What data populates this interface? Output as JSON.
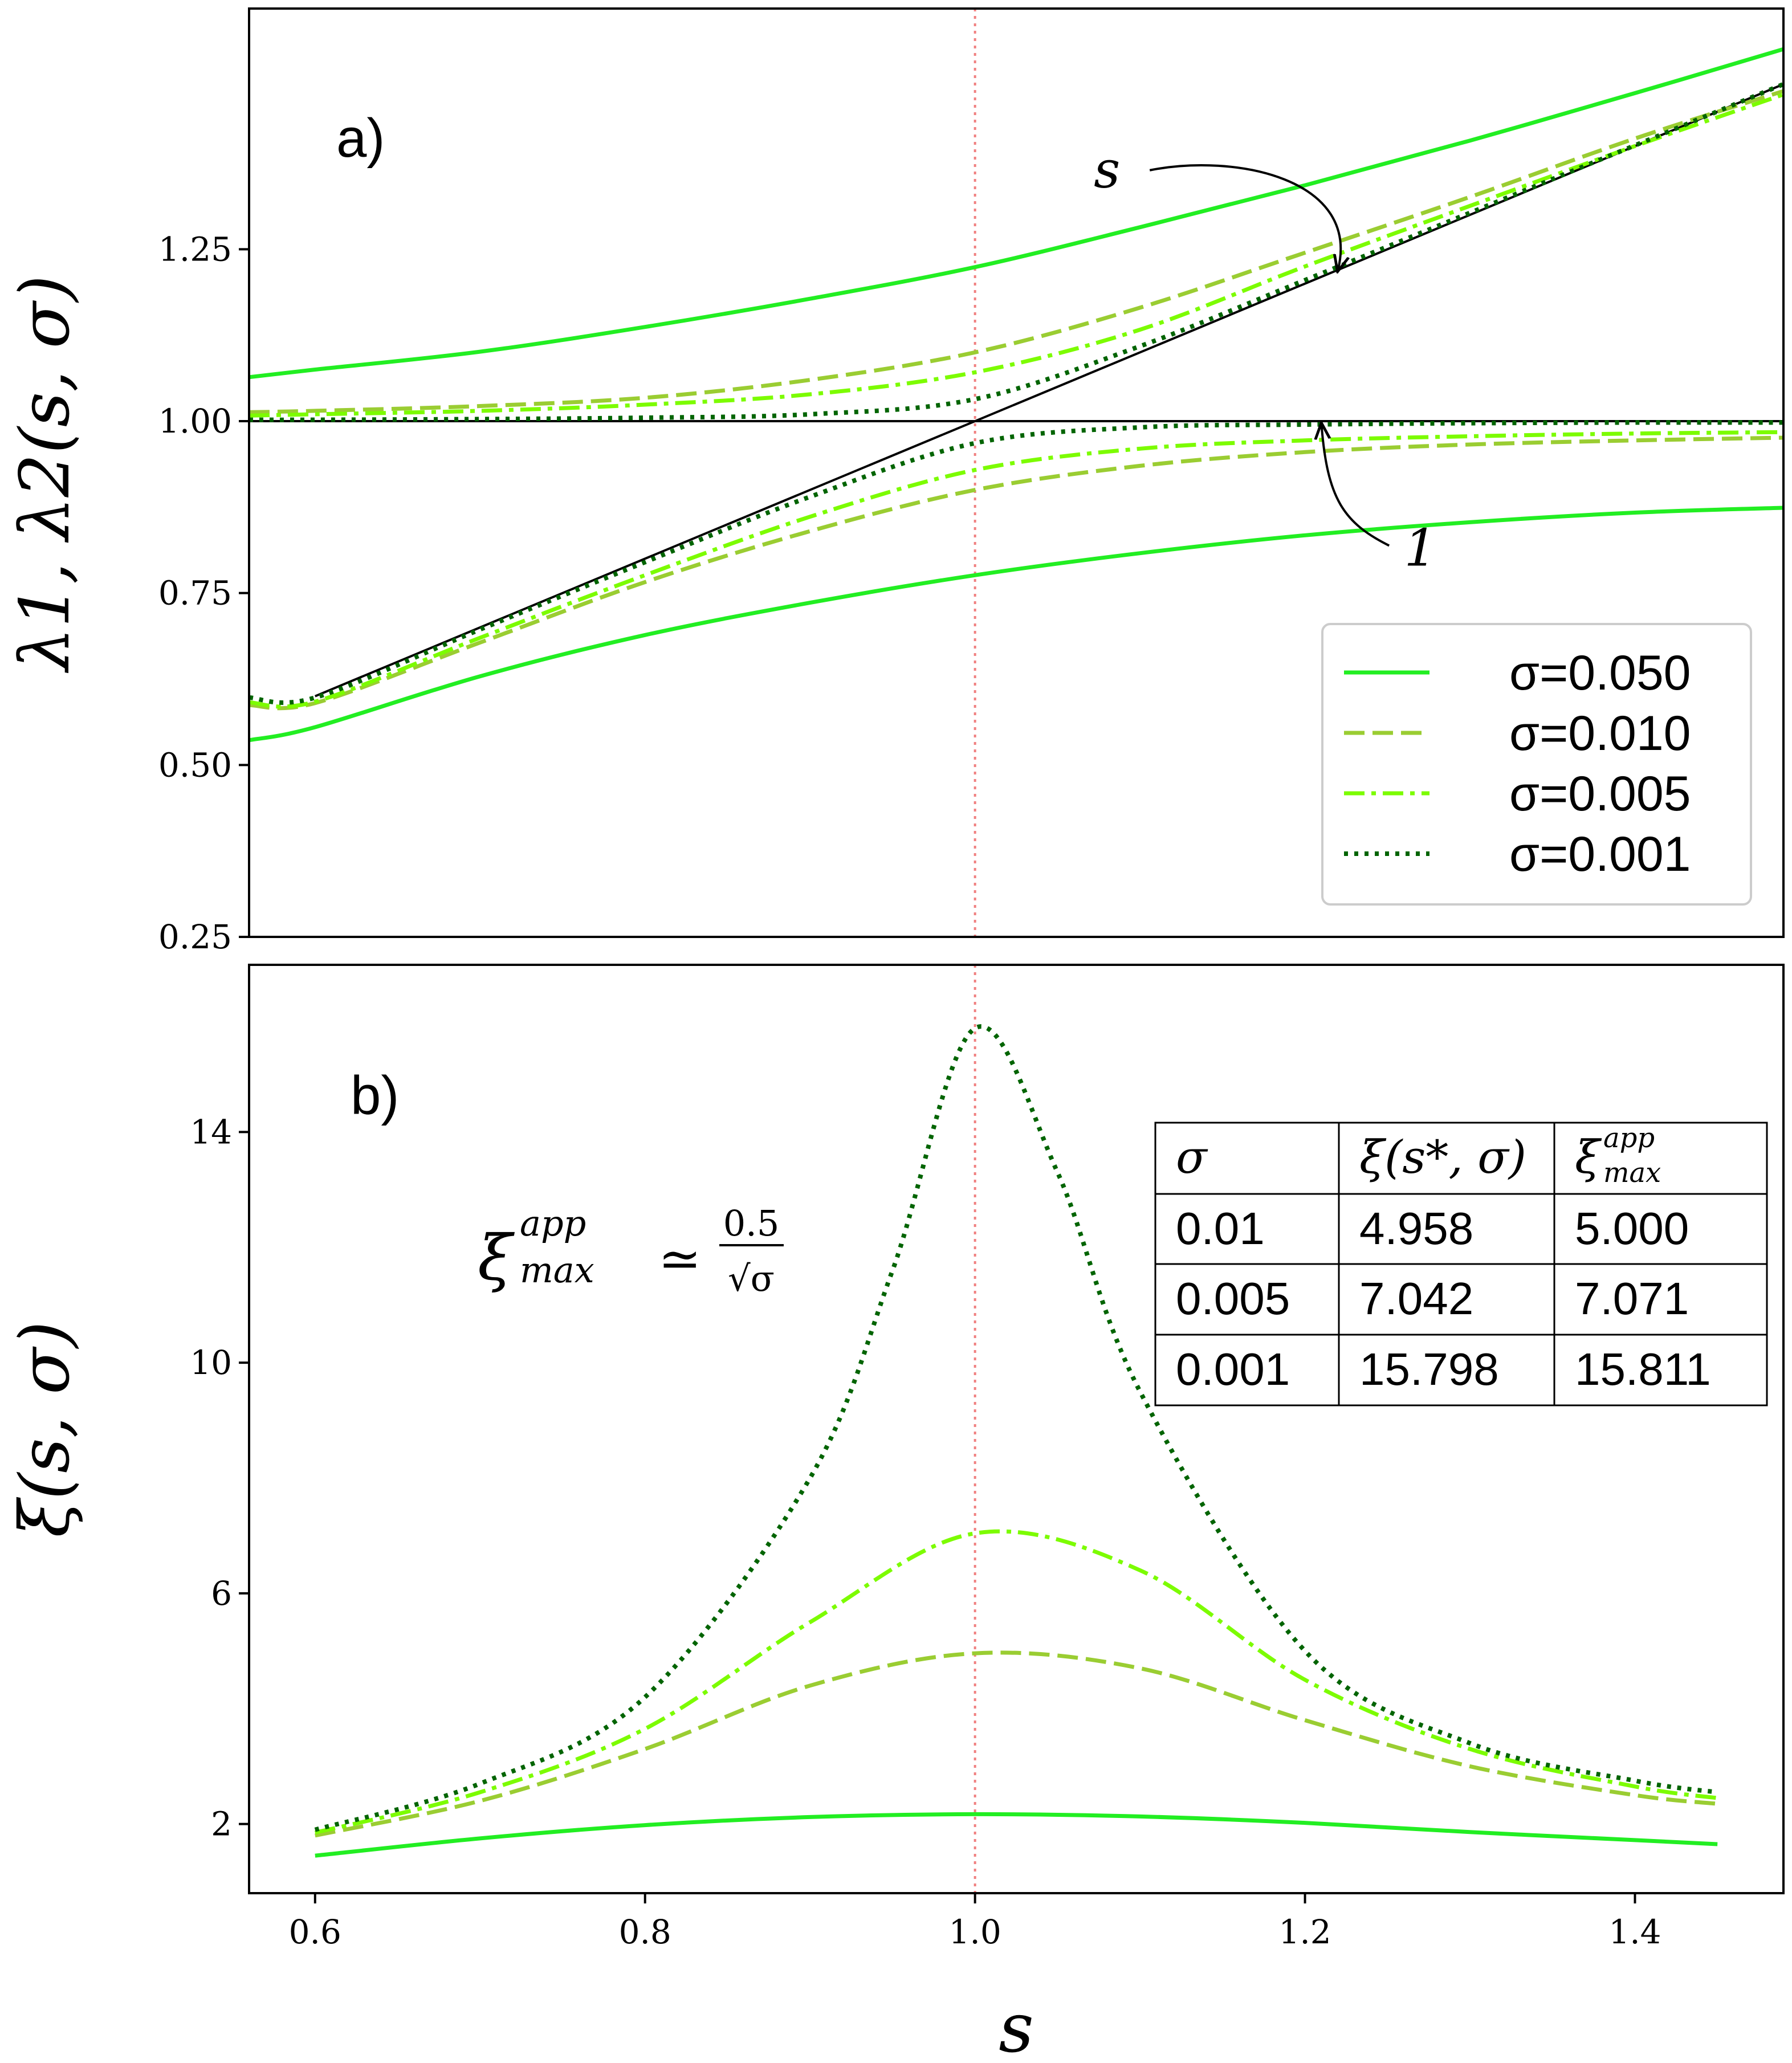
{
  "colors": {
    "sigma_050": "#22ee22",
    "sigma_010": "#9acd32",
    "sigma_005": "#7cfc00",
    "sigma_001": "#006400",
    "reference": "#000000",
    "vline": "#f08080"
  },
  "chart_data": [
    {
      "type": "line",
      "panel_label": "a)",
      "ylabel": "λ1, λ2(s, σ)",
      "xlabel": "",
      "xlim": [
        0.56,
        1.49
      ],
      "ylim": [
        0.25,
        1.6
      ],
      "yticks": [
        0.25,
        0.5,
        0.75,
        1.0,
        1.25
      ],
      "ytick_labels": [
        "0.25",
        "0.50",
        "0.75",
        "1.00",
        "1.25"
      ],
      "vline_x": 1.0,
      "reference_lines": [
        {
          "name": "λ = s",
          "x": [
            0.6,
            1.49
          ],
          "y": [
            0.6,
            1.49
          ]
        },
        {
          "name": "λ = 1",
          "x": [
            0.56,
            1.49
          ],
          "y": [
            1.0,
            1.0
          ]
        }
      ],
      "annotations": [
        {
          "text": "s",
          "x": 1.08,
          "y": 1.34,
          "arrow_to": [
            1.22,
            1.22
          ]
        },
        {
          "text": "1",
          "x": 1.27,
          "y": 0.79,
          "arrow_to": [
            1.21,
            0.995
          ]
        }
      ],
      "legend": {
        "location": "lower-right",
        "entries": [
          {
            "label": "σ=0.050",
            "style": "solid"
          },
          {
            "label": "σ=0.010",
            "style": "dashed"
          },
          {
            "label": "σ=0.005",
            "style": "dashdot"
          },
          {
            "label": "σ=0.001",
            "style": "dotted"
          }
        ]
      },
      "series": [
        {
          "name": "σ=0.050",
          "branch": "upper",
          "style": "solid",
          "sigma": 0.05,
          "x": [
            0.56,
            0.6,
            0.7,
            0.8,
            0.9,
            1.0,
            1.1,
            1.2,
            1.3,
            1.4,
            1.49
          ],
          "y": [
            1.064,
            1.075,
            1.101,
            1.137,
            1.178,
            1.224,
            1.282,
            1.343,
            1.408,
            1.477,
            1.541
          ]
        },
        {
          "name": "σ=0.050",
          "branch": "lower",
          "style": "solid",
          "sigma": 0.05,
          "x": [
            0.56,
            0.6,
            0.7,
            0.8,
            0.9,
            1.0,
            1.1,
            1.2,
            1.3,
            1.4,
            1.49
          ],
          "y": [
            0.536,
            0.555,
            0.629,
            0.689,
            0.736,
            0.776,
            0.808,
            0.834,
            0.853,
            0.867,
            0.874
          ]
        },
        {
          "name": "σ=0.010",
          "branch": "upper",
          "style": "dashed",
          "sigma": 0.01,
          "x": [
            0.56,
            0.6,
            0.7,
            0.8,
            0.9,
            1.0,
            1.1,
            1.2,
            1.3,
            1.4,
            1.49
          ],
          "y": [
            1.013,
            1.015,
            1.022,
            1.034,
            1.06,
            1.1,
            1.165,
            1.245,
            1.326,
            1.411,
            1.48
          ]
        },
        {
          "name": "σ=0.010",
          "branch": "lower",
          "style": "dashed",
          "sigma": 0.01,
          "x": [
            0.56,
            0.6,
            0.7,
            0.8,
            0.9,
            1.0,
            1.1,
            1.2,
            1.3,
            1.4,
            1.49
          ],
          "y": [
            0.587,
            0.59,
            0.678,
            0.766,
            0.84,
            0.9,
            0.935,
            0.955,
            0.966,
            0.972,
            0.976
          ]
        },
        {
          "name": "σ=0.005",
          "branch": "upper",
          "style": "dashdot",
          "sigma": 0.005,
          "x": [
            0.56,
            0.6,
            0.7,
            0.8,
            0.9,
            1.0,
            1.1,
            1.2,
            1.3,
            1.4,
            1.49
          ],
          "y": [
            1.008,
            1.01,
            1.015,
            1.024,
            1.039,
            1.071,
            1.133,
            1.225,
            1.313,
            1.4,
            1.475
          ]
        },
        {
          "name": "σ=0.005",
          "branch": "lower",
          "style": "dashdot",
          "sigma": 0.005,
          "x": [
            0.56,
            0.6,
            0.7,
            0.8,
            0.9,
            1.0,
            1.1,
            1.2,
            1.3,
            1.4,
            1.49
          ],
          "y": [
            0.591,
            0.592,
            0.685,
            0.776,
            0.861,
            0.929,
            0.96,
            0.972,
            0.978,
            0.982,
            0.984
          ]
        },
        {
          "name": "σ=0.001",
          "branch": "upper",
          "style": "dotted",
          "sigma": 0.001,
          "x": [
            0.56,
            0.6,
            0.7,
            0.8,
            0.9,
            1.0,
            1.1,
            1.2,
            1.3,
            1.4,
            1.49
          ],
          "y": [
            1.002,
            1.002,
            1.003,
            1.005,
            1.01,
            1.032,
            1.109,
            1.205,
            1.303,
            1.401,
            1.49
          ]
        },
        {
          "name": "σ=0.001",
          "branch": "lower",
          "style": "dotted",
          "sigma": 0.001,
          "x": [
            0.56,
            0.6,
            0.7,
            0.8,
            0.9,
            1.0,
            1.1,
            1.2,
            1.3,
            1.4,
            1.49
          ],
          "y": [
            0.598,
            0.598,
            0.697,
            0.795,
            0.89,
            0.968,
            0.991,
            0.995,
            0.997,
            0.998,
            0.998
          ]
        }
      ]
    },
    {
      "type": "line",
      "panel_label": "b)",
      "ylabel": "ξ(s, σ)",
      "xlabel": "s",
      "xlim": [
        0.56,
        1.49
      ],
      "ylim": [
        0.8,
        16.9
      ],
      "xticks": [
        0.6,
        0.8,
        1.0,
        1.2,
        1.4
      ],
      "xtick_labels": [
        "0.6",
        "0.8",
        "1.0",
        "1.2",
        "1.4"
      ],
      "yticks": [
        2,
        6,
        10,
        14
      ],
      "ytick_labels": [
        "2",
        "6",
        "10",
        "14"
      ],
      "vline_x": 1.0,
      "formula": {
        "lhs": "ξ",
        "sup": "app",
        "sub": "max",
        "rel": "≃",
        "num": "0.5",
        "den": "√σ"
      },
      "table": {
        "headers": [
          {
            "base": "σ",
            "sup": "",
            "sub": ""
          },
          {
            "base": "ξ(s*, σ)",
            "sup": "",
            "sub": ""
          },
          {
            "base": "ξ",
            "sup": "app",
            "sub": "max"
          }
        ],
        "rows": [
          [
            "0.01",
            "4.958",
            "5.000"
          ],
          [
            "0.005",
            "7.042",
            "7.071"
          ],
          [
            "0.001",
            "15.798",
            "15.811"
          ]
        ]
      },
      "series": [
        {
          "name": "σ=0.050",
          "style": "solid",
          "sigma": 0.05,
          "x": [
            0.6,
            0.7,
            0.8,
            0.9,
            1.0,
            1.1,
            1.2,
            1.3,
            1.4,
            1.45
          ],
          "y": [
            1.45,
            1.75,
            1.98,
            2.12,
            2.17,
            2.13,
            2.02,
            1.86,
            1.72,
            1.65
          ]
        },
        {
          "name": "σ=0.010",
          "style": "dashed",
          "sigma": 0.01,
          "x": [
            0.6,
            0.7,
            0.8,
            0.9,
            1.0,
            1.1,
            1.2,
            1.3,
            1.4,
            1.45
          ],
          "y": [
            1.8,
            2.4,
            3.3,
            4.4,
            4.96,
            4.7,
            3.8,
            3.0,
            2.5,
            2.35
          ]
        },
        {
          "name": "σ=0.005",
          "style": "dashdot",
          "sigma": 0.005,
          "x": [
            0.6,
            0.7,
            0.8,
            0.9,
            1.0,
            1.1,
            1.2,
            1.3,
            1.4,
            1.45
          ],
          "y": [
            1.85,
            2.55,
            3.65,
            5.5,
            7.04,
            6.4,
            4.5,
            3.3,
            2.65,
            2.45
          ]
        },
        {
          "name": "σ=0.001",
          "style": "dotted",
          "sigma": 0.001,
          "x": [
            0.6,
            0.7,
            0.8,
            0.9,
            0.95,
            1.0,
            1.05,
            1.1,
            1.2,
            1.3,
            1.4,
            1.45
          ],
          "y": [
            1.9,
            2.7,
            4.2,
            8.0,
            11.6,
            15.8,
            13.3,
            9.5,
            5.0,
            3.4,
            2.75,
            2.55
          ]
        }
      ]
    }
  ]
}
